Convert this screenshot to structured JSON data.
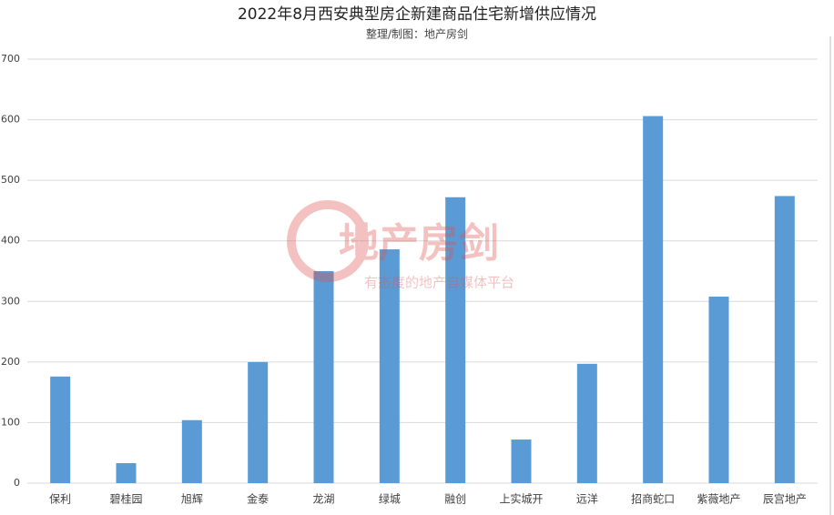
{
  "chart_data": {
    "type": "bar",
    "title": "2022年8月西安典型房企新建商品住宅新增供应情况",
    "subtitle": "整理/制图：地产房剑",
    "watermark": "地产房剑",
    "watermark_slogan": "有态度的地产自媒体平台",
    "categories": [
      "保利",
      "碧桂园",
      "旭辉",
      "金泰",
      "龙湖",
      "绿城",
      "融创",
      "上实城开",
      "远洋",
      "招商蛇口",
      "紫薇地产",
      "辰宫地产"
    ],
    "values": [
      176,
      33,
      104,
      200,
      350,
      386,
      472,
      72,
      197,
      606,
      308,
      474
    ],
    "color": "#5b9bd5",
    "ylim": [
      0,
      700
    ],
    "yticks": [
      0,
      100,
      200,
      300,
      400,
      500,
      600,
      700
    ],
    "grid": true
  }
}
